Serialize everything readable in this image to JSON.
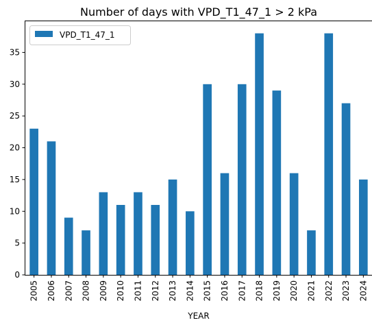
{
  "chart_data": {
    "type": "bar",
    "title": "Number of days with VPD_T1_47_1 > 2 kPa",
    "xlabel": "YEAR",
    "ylabel": "",
    "categories": [
      "2005",
      "2006",
      "2007",
      "2008",
      "2009",
      "2010",
      "2011",
      "2012",
      "2013",
      "2014",
      "2015",
      "2016",
      "2017",
      "2018",
      "2019",
      "2020",
      "2021",
      "2022",
      "2023",
      "2024"
    ],
    "series": [
      {
        "name": "VPD_T1_47_1",
        "values": [
          23,
          21,
          9,
          7,
          13,
          11,
          13,
          11,
          15,
          10,
          30,
          16,
          30,
          38,
          29,
          16,
          7,
          38,
          27,
          15
        ]
      }
    ],
    "ylim": [
      0,
      39.9
    ],
    "yticks": [
      0,
      5,
      10,
      15,
      20,
      25,
      30,
      35
    ],
    "grid": false,
    "legend_position": "upper left",
    "bar_color": "#1f77b4"
  }
}
